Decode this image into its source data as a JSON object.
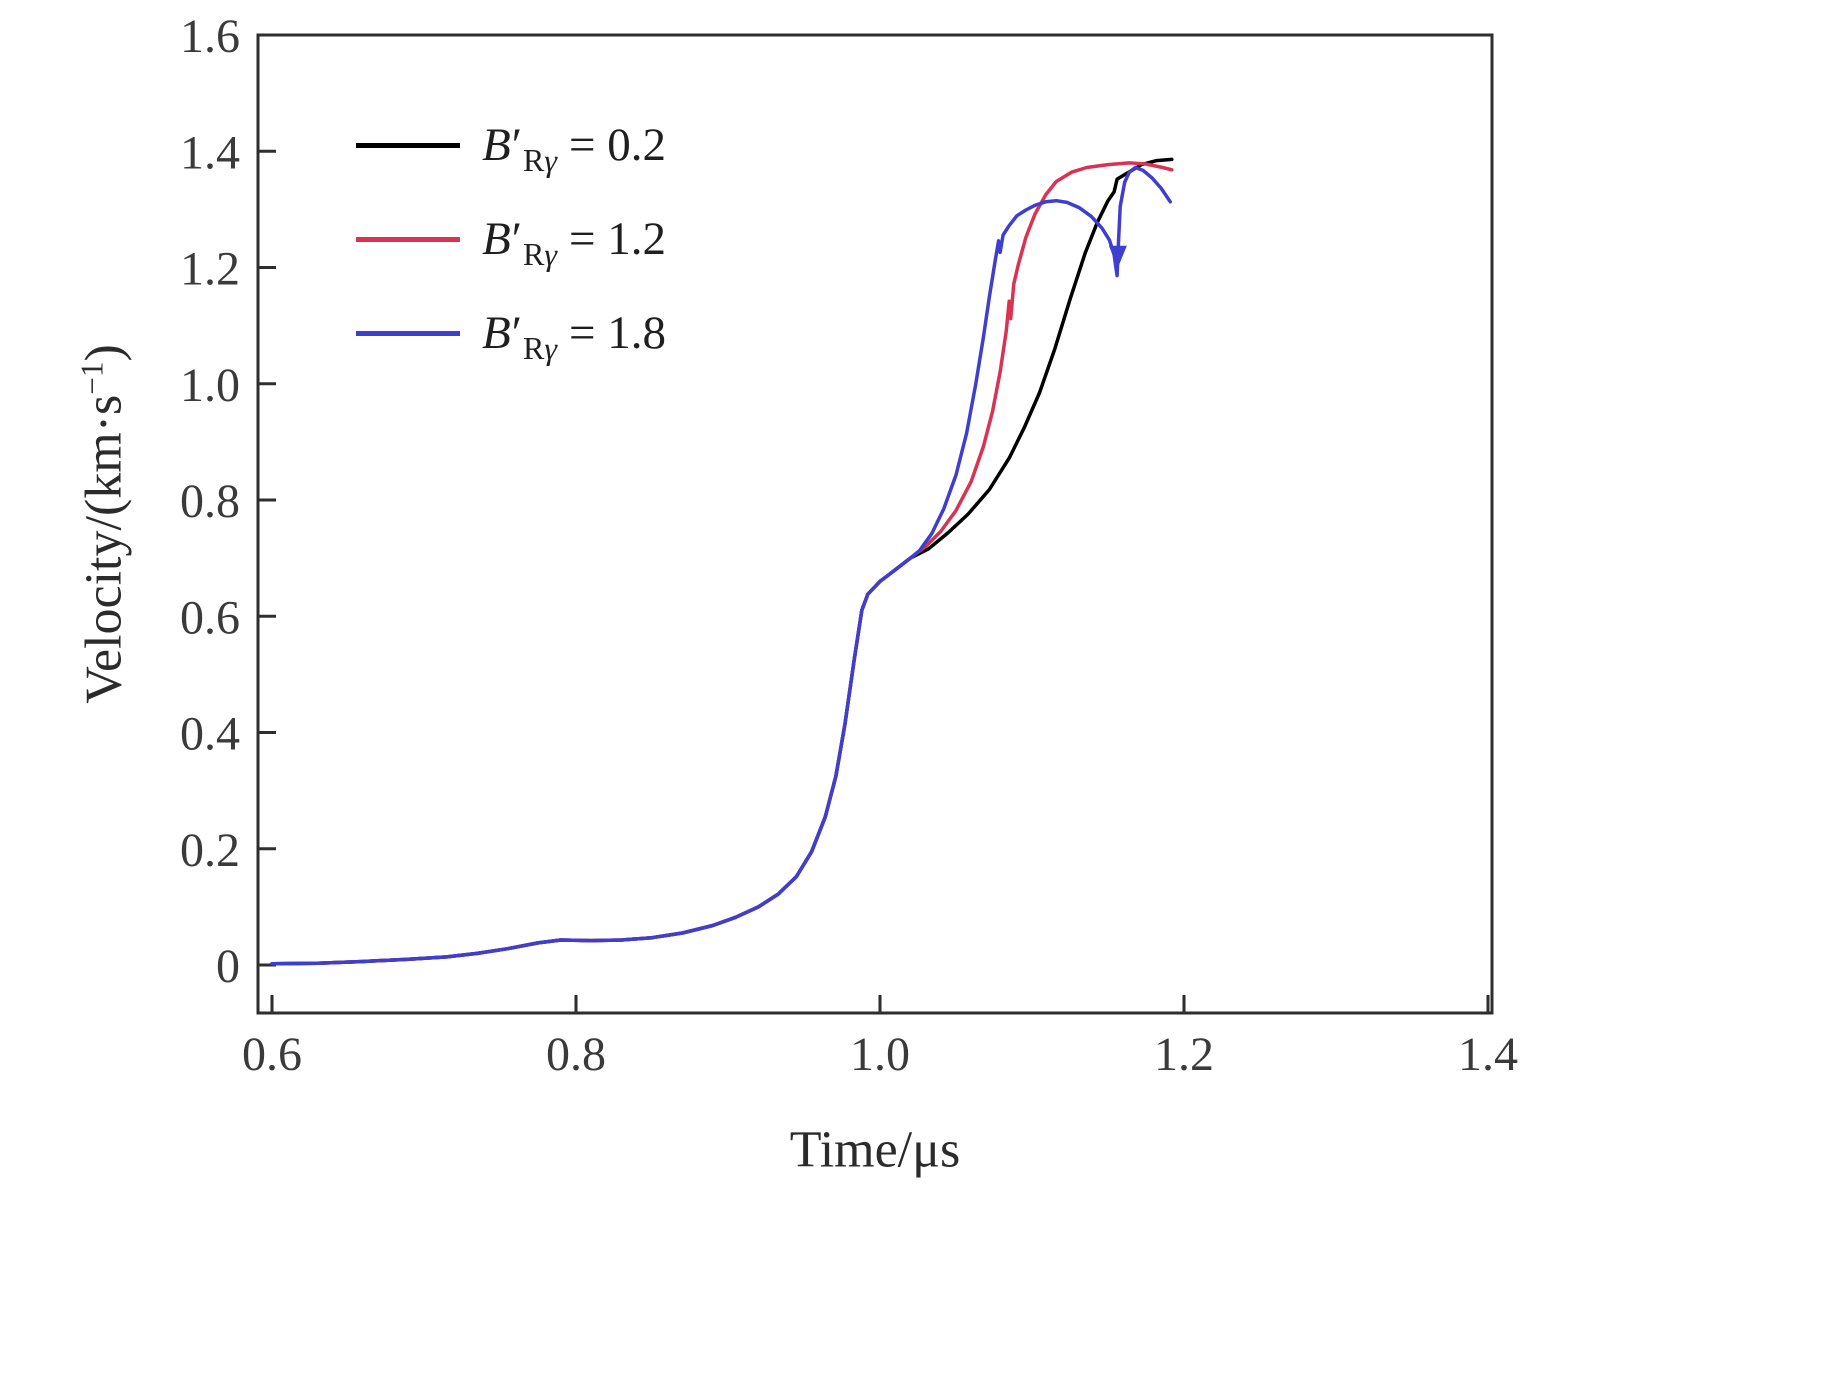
{
  "figure": {
    "background_color": "#ffffff",
    "axis_color": "#2e2e2e",
    "tick_label_color": "#3a3a3a"
  },
  "chart_data": {
    "type": "line",
    "title": "",
    "xlabel": "Time/μs",
    "ylabel": "Velocity/(km·s⁻¹)",
    "ylabel_parts": {
      "pre": "Velocity/(km·s",
      "sup": "−1",
      "post": ")"
    },
    "xlim": [
      0.6,
      1.4
    ],
    "ylim": [
      0,
      1.6
    ],
    "x_tick_labels": [
      "0.6",
      "0.8",
      "1.0",
      "1.2",
      "1.4"
    ],
    "x_tick_values": [
      0.6,
      0.8,
      1.0,
      1.2,
      1.4
    ],
    "y_tick_labels": [
      "0",
      "0.2",
      "0.4",
      "0.6",
      "0.8",
      "1.0",
      "1.2",
      "1.4",
      "1.6"
    ],
    "y_tick_values": [
      0,
      0.2,
      0.4,
      0.6,
      0.8,
      1.0,
      1.2,
      1.4,
      1.6
    ],
    "grid": false,
    "legend_position": "top-left-inside",
    "common_points": [
      [
        0.6,
        0.002
      ],
      [
        0.63,
        0.003
      ],
      [
        0.66,
        0.006
      ],
      [
        0.69,
        0.01
      ],
      [
        0.715,
        0.014
      ],
      [
        0.735,
        0.02
      ],
      [
        0.755,
        0.028
      ],
      [
        0.775,
        0.038
      ],
      [
        0.79,
        0.043
      ],
      [
        0.81,
        0.042
      ],
      [
        0.83,
        0.043
      ],
      [
        0.85,
        0.047
      ],
      [
        0.87,
        0.055
      ],
      [
        0.89,
        0.068
      ],
      [
        0.905,
        0.082
      ],
      [
        0.92,
        0.1
      ],
      [
        0.933,
        0.122
      ],
      [
        0.945,
        0.152
      ],
      [
        0.955,
        0.195
      ],
      [
        0.964,
        0.255
      ],
      [
        0.971,
        0.325
      ],
      [
        0.977,
        0.415
      ],
      [
        0.983,
        0.525
      ],
      [
        0.988,
        0.61
      ],
      [
        0.992,
        0.638
      ],
      [
        1.0,
        0.66
      ],
      [
        1.01,
        0.68
      ],
      [
        1.02,
        0.7
      ]
    ],
    "series": [
      {
        "name": "B′Rγ = 0.2",
        "color": "#000000",
        "legend": {
          "var": "B",
          "prime": "′",
          "sub_roman": "R",
          "sub_italic": "γ",
          "eq": "= 0.2"
        },
        "points": [
          [
            1.032,
            0.716
          ],
          [
            1.045,
            0.744
          ],
          [
            1.058,
            0.776
          ],
          [
            1.072,
            0.818
          ],
          [
            1.085,
            0.872
          ],
          [
            1.095,
            0.925
          ],
          [
            1.105,
            0.985
          ],
          [
            1.115,
            1.06
          ],
          [
            1.125,
            1.145
          ],
          [
            1.135,
            1.225
          ],
          [
            1.143,
            1.278
          ],
          [
            1.15,
            1.315
          ],
          [
            1.154,
            1.33
          ],
          [
            1.156,
            1.352
          ],
          [
            1.163,
            1.363
          ],
          [
            1.172,
            1.377
          ],
          [
            1.182,
            1.384
          ],
          [
            1.192,
            1.386
          ]
        ]
      },
      {
        "name": "B′Rγ = 1.2",
        "color": "#d93252",
        "legend": {
          "var": "B",
          "prime": "′",
          "sub_roman": "R",
          "sub_italic": "γ",
          "eq": "= 1.2"
        },
        "points": [
          [
            1.03,
            0.72
          ],
          [
            1.04,
            0.746
          ],
          [
            1.05,
            0.782
          ],
          [
            1.06,
            0.832
          ],
          [
            1.068,
            0.892
          ],
          [
            1.074,
            0.952
          ],
          [
            1.079,
            1.02
          ],
          [
            1.083,
            1.09
          ],
          [
            1.085,
            1.142
          ],
          [
            1.086,
            1.112
          ],
          [
            1.088,
            1.172
          ],
          [
            1.091,
            1.205
          ],
          [
            1.096,
            1.252
          ],
          [
            1.102,
            1.292
          ],
          [
            1.109,
            1.325
          ],
          [
            1.116,
            1.348
          ],
          [
            1.126,
            1.364
          ],
          [
            1.136,
            1.372
          ],
          [
            1.15,
            1.377
          ],
          [
            1.164,
            1.38
          ],
          [
            1.175,
            1.378
          ],
          [
            1.186,
            1.372
          ],
          [
            1.192,
            1.368
          ]
        ]
      },
      {
        "name": "B′Rγ = 1.8",
        "color": "#3e3ecf",
        "legend": {
          "var": "B",
          "prime": "′",
          "sub_roman": "R",
          "sub_italic": "γ",
          "eq": "= 1.8"
        },
        "points": [
          [
            1.026,
            0.713
          ],
          [
            1.034,
            0.742
          ],
          [
            1.042,
            0.785
          ],
          [
            1.05,
            0.843
          ],
          [
            1.057,
            0.915
          ],
          [
            1.063,
            1.0
          ],
          [
            1.068,
            1.08
          ],
          [
            1.072,
            1.15
          ],
          [
            1.076,
            1.215
          ],
          [
            1.078,
            1.246
          ],
          [
            1.079,
            1.226
          ],
          [
            1.081,
            1.256
          ],
          [
            1.085,
            1.272
          ],
          [
            1.09,
            1.289
          ],
          [
            1.096,
            1.299
          ],
          [
            1.102,
            1.307
          ],
          [
            1.109,
            1.313
          ],
          [
            1.116,
            1.315
          ],
          [
            1.123,
            1.312
          ],
          [
            1.131,
            1.303
          ],
          [
            1.139,
            1.288
          ],
          [
            1.146,
            1.268
          ],
          [
            1.151,
            1.247
          ],
          [
            1.154,
            1.222
          ],
          [
            1.156,
            1.186
          ],
          [
            1.157,
            1.248
          ],
          [
            1.158,
            1.305
          ],
          [
            1.161,
            1.347
          ],
          [
            1.164,
            1.364
          ],
          [
            1.168,
            1.372
          ],
          [
            1.173,
            1.367
          ],
          [
            1.179,
            1.354
          ],
          [
            1.185,
            1.336
          ],
          [
            1.191,
            1.313
          ]
        ]
      }
    ],
    "annotations": [
      {
        "type": "arrow-down",
        "x": 1.1565,
        "y": 1.21,
        "series": 2,
        "color": "#3e3ecf"
      }
    ]
  }
}
